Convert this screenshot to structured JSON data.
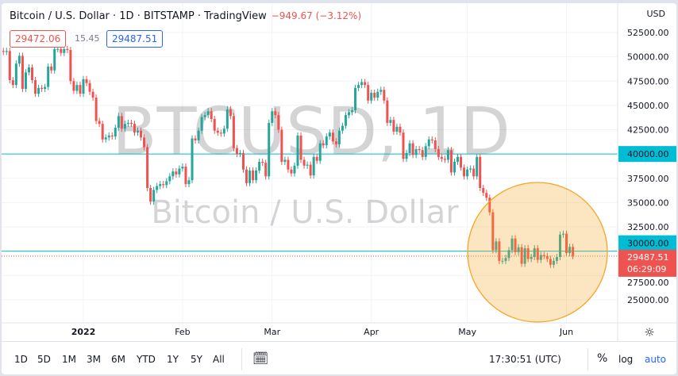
{
  "header": {
    "title": "Bitcoin / U.S. Dollar · 1D · BITSTAMP · TradingView",
    "change": "−949.67 (−3.12%)",
    "currency": "USD",
    "bid": "29472.06",
    "spread": "15.45",
    "ask": "29487.51"
  },
  "watermark": {
    "line1": "BTCUSD, 1D",
    "line2": "Bitcoin / U.S. Dollar"
  },
  "price_label": {
    "price": "29487.51",
    "countdown": "06:29:09"
  },
  "bottom_bar": {
    "ranges": [
      "1D",
      "5D",
      "1M",
      "3M",
      "6M",
      "YTD",
      "1Y",
      "5Y",
      "All"
    ],
    "time": "17:30:51 (UTC)",
    "percent": "%",
    "log": "log",
    "auto": "auto"
  },
  "colors": {
    "up": "#26a69a",
    "down": "#ef5350",
    "hline": "#00bcd4",
    "highlight": "#f5a623"
  },
  "chart_data": {
    "type": "candlestick",
    "first_date": "2021-12-06",
    "last_date": "2022-06-03",
    "close": [
      50600,
      50500,
      50600,
      47600,
      47100,
      49300,
      50100,
      46700,
      48400,
      48900,
      47600,
      46200,
      46800,
      46700,
      46900,
      49000,
      48600,
      50800,
      50800,
      50400,
      50800,
      50700,
      47500,
      46500,
      47100,
      46200,
      47700,
      47300,
      46400,
      45800,
      43400,
      43100,
      41500,
      41700,
      41900,
      41800,
      42700,
      43900,
      42600,
      43100,
      43200,
      43100,
      42200,
      42400,
      41700,
      40700,
      36500,
      35100,
      36300,
      36700,
      36900,
      36800,
      37200,
      37700,
      38200,
      37900,
      38500,
      38700,
      36900,
      37300,
      41600,
      41400,
      42400,
      43800,
      44000,
      44400,
      43600,
      42400,
      42200,
      42100,
      42600,
      44600,
      43900,
      40600,
      40000,
      40100,
      38400,
      37000,
      38300,
      37300,
      38300,
      39200,
      39100,
      37700,
      43200,
      44400,
      44000,
      42500,
      39200,
      39400,
      38400,
      38000,
      38800,
      41900,
      39400,
      38800,
      38900,
      37800,
      39700,
      39300,
      41100,
      40900,
      41800,
      42200,
      41300,
      41000,
      42400,
      42900,
      44000,
      44300,
      44500,
      46800,
      47100,
      47400,
      47100,
      45500,
      46300,
      45800,
      46400,
      46600,
      45500,
      43200,
      43500,
      42300,
      42800,
      42200,
      39500,
      40100,
      41100,
      39900,
      40500,
      40400,
      39700,
      40800,
      41500,
      41400,
      40500,
      39700,
      39500,
      39400,
      40400,
      38100,
      39200,
      39700,
      38600,
      37700,
      38400,
      38500,
      37700,
      39700,
      36500,
      36000,
      35500,
      34000,
      30100,
      31000,
      29000,
      29000,
      29300,
      30100,
      31300,
      29900,
      30400,
      28700,
      30300,
      29200,
      29400,
      30300,
      29100,
      29600,
      29500,
      29200,
      28600,
      29000,
      29400,
      31700,
      31800,
      29800,
      30437,
      29487.51
    ],
    "x_ticks": [
      "2022",
      "Feb",
      "Mar",
      "Apr",
      "May",
      "Jun"
    ],
    "y_ticks": [
      52500,
      50000,
      47500,
      45000,
      42500,
      40000,
      37500,
      35000,
      32500,
      30000,
      27500,
      25000
    ],
    "ylim": [
      23500,
      53500
    ],
    "horizontal_lines": [
      40000,
      30000
    ],
    "current_price": 29487.51
  }
}
